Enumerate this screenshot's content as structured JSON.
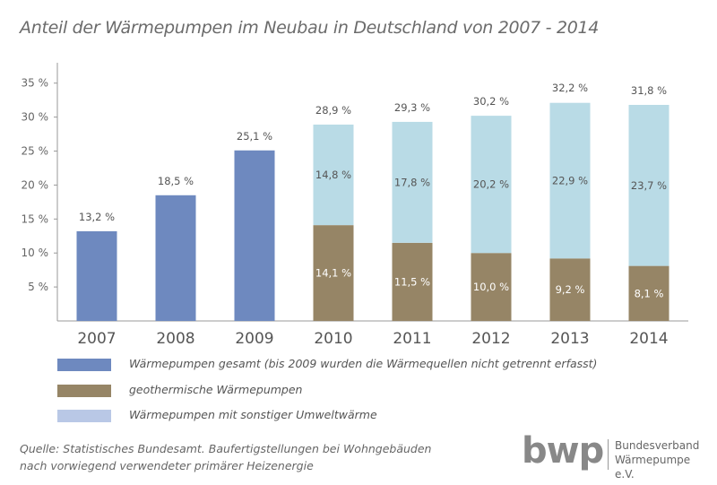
{
  "title": "Anteil der Wärmepumpen im Neubau in Deutschland von 2007 - 2014",
  "chart_data": {
    "type": "bar",
    "stacked": true,
    "categories": [
      "2007",
      "2008",
      "2009",
      "2010",
      "2011",
      "2012",
      "2013",
      "2014"
    ],
    "ylim": [
      0,
      38
    ],
    "yticks": [
      5,
      10,
      15,
      20,
      25,
      30,
      35
    ],
    "ytick_labels": [
      "5 %",
      "10 %",
      "15 %",
      "20 %",
      "25 %",
      "30 %",
      "35 %"
    ],
    "grid": false,
    "series": [
      {
        "name": "Wärmepumpen gesamt (bis 2009 wurden die Wärmequellen nicht getrennt erfasst)",
        "color": "#6e89bf",
        "values": [
          13.2,
          18.5,
          25.1,
          null,
          null,
          null,
          null,
          null
        ],
        "labels": [
          "13,2 %",
          "18,5 %",
          "25,1 %",
          "",
          "",
          "",
          "",
          ""
        ]
      },
      {
        "name": "geothermische Wärmepumpen",
        "color": "#968566",
        "values": [
          null,
          null,
          null,
          14.1,
          11.5,
          10.0,
          9.2,
          8.1
        ],
        "labels": [
          "",
          "",
          "",
          "14,1 %",
          "11,5 %",
          "10,0 %",
          "9,2 %",
          "8,1 %"
        ]
      },
      {
        "name": "Wärmepumpen mit sonstiger Umweltwärme",
        "color": "#b9dbe6",
        "values": [
          null,
          null,
          null,
          14.8,
          17.8,
          20.2,
          22.9,
          23.7
        ],
        "labels": [
          "",
          "",
          "",
          "14,8 %",
          "17,8 %",
          "20,2 %",
          "22,9 %",
          "23,7 %"
        ]
      }
    ],
    "totals": [
      null,
      null,
      null,
      28.9,
      29.3,
      30.2,
      32.2,
      31.8
    ],
    "total_labels": [
      "",
      "",
      "",
      "28,9 %",
      "29,3 %",
      "30,2 %",
      "32,2 %",
      "31,8 %"
    ]
  },
  "legend": [
    {
      "label": "Wärmepumpen gesamt (bis 2009 wurden die Wärmequellen nicht getrennt erfasst)",
      "color": "#6e89bf"
    },
    {
      "label": "geothermische Wärmepumpen",
      "color": "#968566"
    },
    {
      "label": "Wärmepumpen mit sonstiger Umweltwärme",
      "color": "#b9c8e6"
    }
  ],
  "source": {
    "line1": "Quelle: Statistisches Bundesamt. Baufertigstellungen bei Wohngebäuden",
    "line2": "nach vorwiegend verwendeter primärer Heizenergie"
  },
  "logo": {
    "mark": "bwp",
    "line1": "Bundesverband",
    "line2": "Wärmepumpe e.V."
  }
}
